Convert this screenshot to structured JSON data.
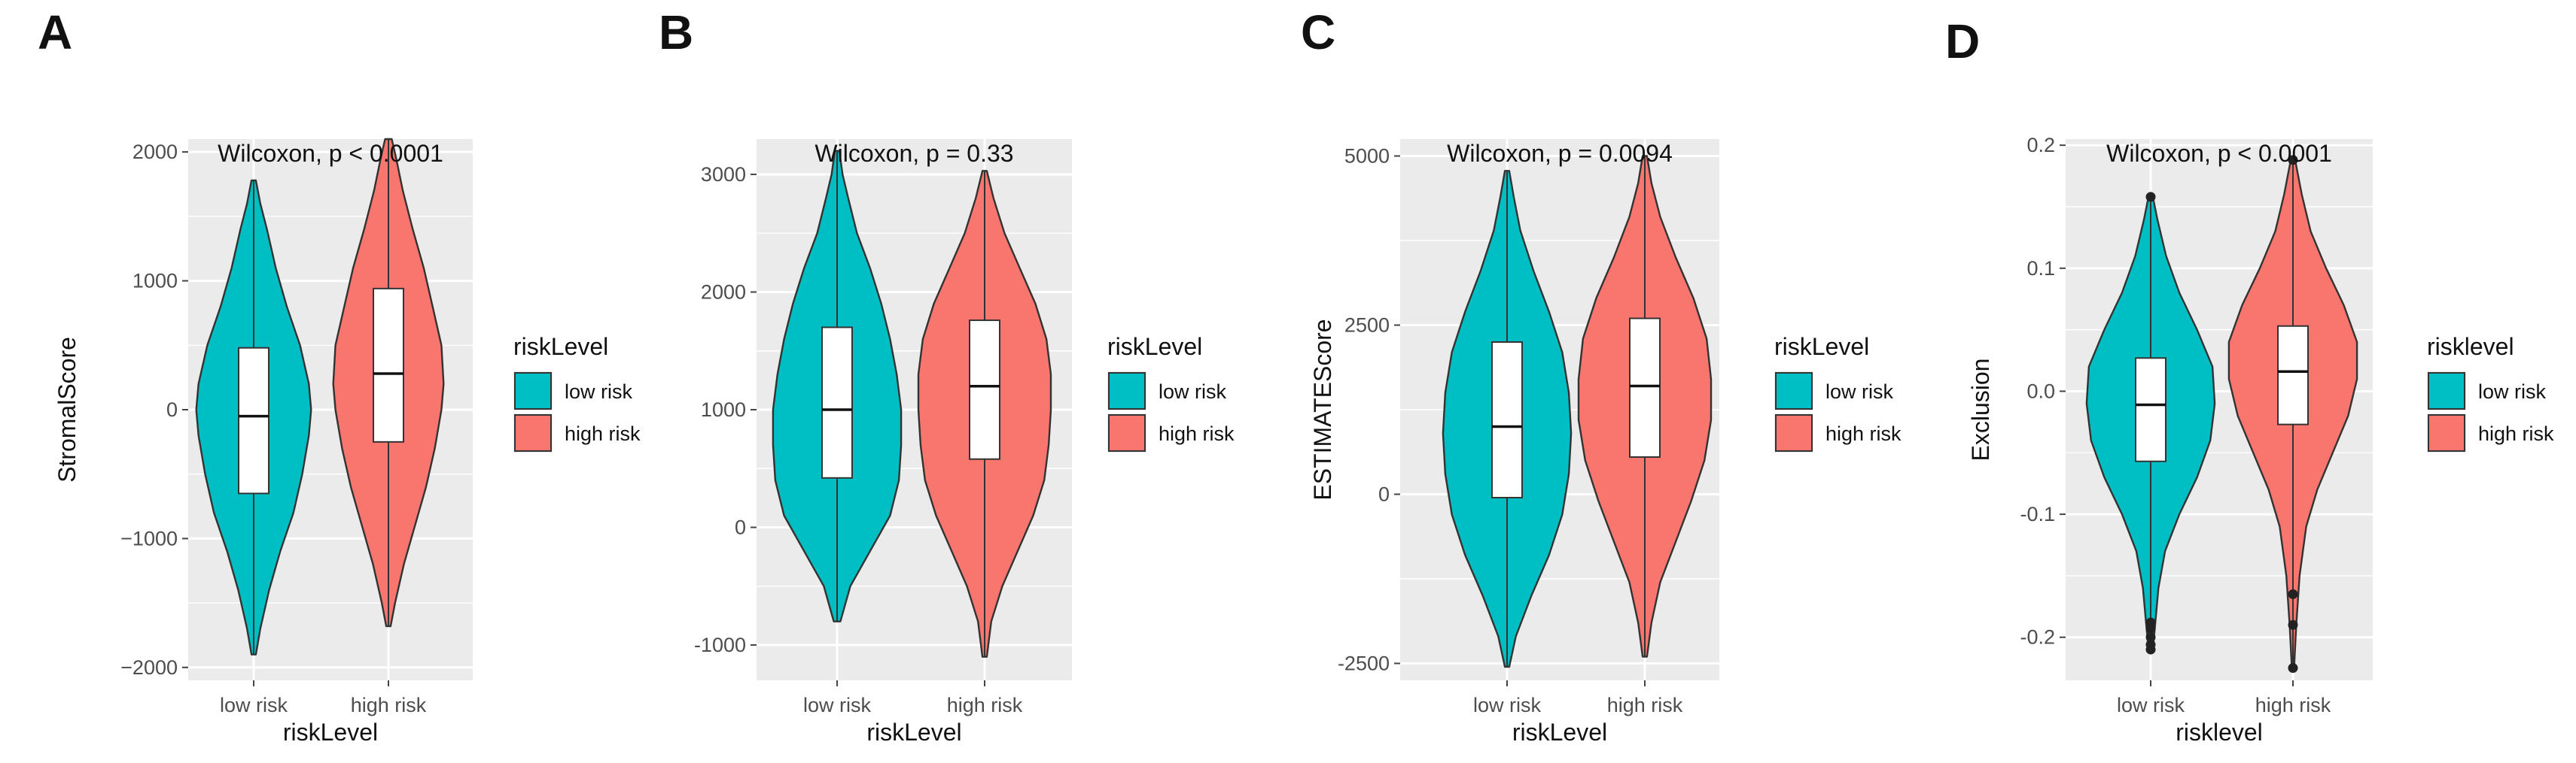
{
  "panels": [
    {
      "letter": "A"
    },
    {
      "letter": "B"
    },
    {
      "letter": "C"
    },
    {
      "letter": "D"
    }
  ],
  "colors": {
    "low_risk": "#00BFC4",
    "high_risk": "#F8766D",
    "panel_bg": "#EBEBEB",
    "grid": "#FFFFFF",
    "outline": "#333333"
  },
  "chart_data": [
    {
      "type": "violin",
      "title": "Wilcoxon, p < 0.0001",
      "xlabel": "riskLevel",
      "ylabel": "StromalScore",
      "categories": [
        "low risk",
        "high risk"
      ],
      "ylim": [
        -2100,
        2100
      ],
      "yticks": [
        -2000,
        -1000,
        0,
        1000,
        2000
      ],
      "ytick_labels": [
        "−2000",
        "−1000",
        "0",
        "1000",
        "2000"
      ],
      "grid": true,
      "legend": {
        "title": "riskLevel",
        "entries": [
          "low risk",
          "high risk"
        ],
        "position": "right"
      },
      "series": [
        {
          "name": "low risk",
          "min": -1900,
          "max": 1780,
          "q1": -650,
          "median": -50,
          "q3": 480,
          "density": [
            [
              -1900,
              0.02
            ],
            [
              -1700,
              0.06
            ],
            [
              -1400,
              0.14
            ],
            [
              -1100,
              0.24
            ],
            [
              -800,
              0.36
            ],
            [
              -500,
              0.44
            ],
            [
              -200,
              0.5
            ],
            [
              0,
              0.52
            ],
            [
              200,
              0.5
            ],
            [
              500,
              0.42
            ],
            [
              800,
              0.3
            ],
            [
              1100,
              0.2
            ],
            [
              1400,
              0.12
            ],
            [
              1600,
              0.06
            ],
            [
              1780,
              0.02
            ]
          ],
          "outliers": []
        },
        {
          "name": "high risk",
          "min": -1680,
          "max": 2100,
          "q1": -250,
          "median": 280,
          "q3": 940,
          "density": [
            [
              -1680,
              0.02
            ],
            [
              -1500,
              0.06
            ],
            [
              -1200,
              0.14
            ],
            [
              -900,
              0.24
            ],
            [
              -600,
              0.34
            ],
            [
              -300,
              0.42
            ],
            [
              0,
              0.48
            ],
            [
              200,
              0.5
            ],
            [
              500,
              0.48
            ],
            [
              800,
              0.4
            ],
            [
              1100,
              0.32
            ],
            [
              1400,
              0.22
            ],
            [
              1700,
              0.13
            ],
            [
              1950,
              0.07
            ],
            [
              2100,
              0.03
            ]
          ],
          "outliers": []
        }
      ]
    },
    {
      "type": "violin",
      "title": "Wilcoxon, p = 0.33",
      "xlabel": "riskLevel",
      "ylabel": "",
      "categories": [
        "low risk",
        "high risk"
      ],
      "ylim": [
        -1300,
        3300
      ],
      "yticks": [
        -1000,
        0,
        1000,
        2000,
        3000
      ],
      "ytick_labels": [
        "-1000",
        "0",
        "1000",
        "2000",
        "3000"
      ],
      "grid": true,
      "legend": {
        "title": "riskLevel",
        "entries": [
          "low risk",
          "high risk"
        ],
        "position": "right"
      },
      "series": [
        {
          "name": "low risk",
          "min": -800,
          "max": 3200,
          "q1": 420,
          "median": 1000,
          "q3": 1700,
          "density": [
            [
              -800,
              0.03
            ],
            [
              -500,
              0.12
            ],
            [
              -200,
              0.3
            ],
            [
              100,
              0.48
            ],
            [
              400,
              0.56
            ],
            [
              700,
              0.58
            ],
            [
              1000,
              0.58
            ],
            [
              1300,
              0.54
            ],
            [
              1600,
              0.48
            ],
            [
              1900,
              0.4
            ],
            [
              2200,
              0.3
            ],
            [
              2500,
              0.18
            ],
            [
              2800,
              0.1
            ],
            [
              3000,
              0.05
            ],
            [
              3200,
              0.02
            ]
          ],
          "outliers": []
        },
        {
          "name": "high risk",
          "min": -1100,
          "max": 3030,
          "q1": 580,
          "median": 1200,
          "q3": 1760,
          "density": [
            [
              -1100,
              0.02
            ],
            [
              -800,
              0.06
            ],
            [
              -500,
              0.16
            ],
            [
              -200,
              0.3
            ],
            [
              100,
              0.44
            ],
            [
              400,
              0.54
            ],
            [
              700,
              0.58
            ],
            [
              1000,
              0.6
            ],
            [
              1300,
              0.6
            ],
            [
              1600,
              0.56
            ],
            [
              1900,
              0.46
            ],
            [
              2200,
              0.32
            ],
            [
              2500,
              0.18
            ],
            [
              2800,
              0.08
            ],
            [
              3030,
              0.02
            ]
          ],
          "outliers": []
        }
      ]
    },
    {
      "type": "violin",
      "title": "Wilcoxon, p = 0.0094",
      "xlabel": "riskLevel",
      "ylabel": "ESTIMATEScore",
      "categories": [
        "low risk",
        "high risk"
      ],
      "ylim": [
        -2750,
        5250
      ],
      "yticks": [
        -2500,
        0,
        2500,
        5000
      ],
      "ytick_labels": [
        "-2500",
        "0",
        "2500",
        "5000"
      ],
      "grid": true,
      "legend": {
        "title": "riskLevel",
        "entries": [
          "low risk",
          "high risk"
        ],
        "position": "right"
      },
      "series": [
        {
          "name": "low risk",
          "min": -2550,
          "max": 4780,
          "q1": -50,
          "median": 1000,
          "q3": 2250,
          "density": [
            [
              -2550,
              0.02
            ],
            [
              -2100,
              0.08
            ],
            [
              -1500,
              0.22
            ],
            [
              -900,
              0.38
            ],
            [
              -300,
              0.5
            ],
            [
              300,
              0.56
            ],
            [
              900,
              0.58
            ],
            [
              1500,
              0.56
            ],
            [
              2100,
              0.5
            ],
            [
              2700,
              0.38
            ],
            [
              3300,
              0.24
            ],
            [
              3900,
              0.12
            ],
            [
              4400,
              0.06
            ],
            [
              4780,
              0.02
            ]
          ],
          "outliers": []
        },
        {
          "name": "high risk",
          "min": -2400,
          "max": 5000,
          "q1": 550,
          "median": 1600,
          "q3": 2600,
          "density": [
            [
              -2400,
              0.02
            ],
            [
              -1900,
              0.06
            ],
            [
              -1300,
              0.14
            ],
            [
              -700,
              0.28
            ],
            [
              -100,
              0.42
            ],
            [
              500,
              0.54
            ],
            [
              1100,
              0.6
            ],
            [
              1700,
              0.6
            ],
            [
              2300,
              0.56
            ],
            [
              2900,
              0.44
            ],
            [
              3500,
              0.28
            ],
            [
              4100,
              0.14
            ],
            [
              4600,
              0.06
            ],
            [
              5000,
              0.02
            ]
          ],
          "outliers": []
        }
      ]
    },
    {
      "type": "violin",
      "title": "Wilcoxon, p < 0.0001",
      "xlabel": "risklevel",
      "ylabel": "Exclusion",
      "categories": [
        "low risk",
        "high risk"
      ],
      "ylim": [
        -0.235,
        0.205
      ],
      "yticks": [
        -0.2,
        -0.1,
        0.0,
        0.1,
        0.2
      ],
      "ytick_labels": [
        "-0.2",
        "-0.1",
        "0.0",
        "0.1",
        "0.2"
      ],
      "grid": true,
      "legend": {
        "title": "risklevel",
        "entries": [
          "low risk",
          "high risk"
        ],
        "position": "right"
      },
      "series": [
        {
          "name": "low risk",
          "min": -0.21,
          "max": 0.158,
          "q1": -0.057,
          "median": -0.011,
          "q3": 0.027,
          "density": [
            [
              -0.21,
              0.02
            ],
            [
              -0.19,
              0.04
            ],
            [
              -0.16,
              0.07
            ],
            [
              -0.13,
              0.13
            ],
            [
              -0.1,
              0.26
            ],
            [
              -0.07,
              0.42
            ],
            [
              -0.04,
              0.54
            ],
            [
              -0.01,
              0.58
            ],
            [
              0.02,
              0.56
            ],
            [
              0.05,
              0.42
            ],
            [
              0.08,
              0.26
            ],
            [
              0.11,
              0.14
            ],
            [
              0.14,
              0.06
            ],
            [
              0.158,
              0.02
            ]
          ],
          "outliers": [
            0.158,
            -0.188,
            -0.193,
            -0.2,
            -0.206,
            -0.21
          ]
        },
        {
          "name": "high risk",
          "min": -0.225,
          "max": 0.188,
          "q1": -0.027,
          "median": 0.016,
          "q3": 0.053,
          "density": [
            [
              -0.225,
              0.01
            ],
            [
              -0.19,
              0.03
            ],
            [
              -0.15,
              0.06
            ],
            [
              -0.11,
              0.12
            ],
            [
              -0.08,
              0.22
            ],
            [
              -0.05,
              0.36
            ],
            [
              -0.02,
              0.5
            ],
            [
              0.01,
              0.58
            ],
            [
              0.04,
              0.58
            ],
            [
              0.07,
              0.46
            ],
            [
              0.1,
              0.3
            ],
            [
              0.13,
              0.16
            ],
            [
              0.16,
              0.08
            ],
            [
              0.188,
              0.02
            ]
          ],
          "outliers": [
            0.188,
            -0.165,
            -0.19,
            -0.225
          ]
        }
      ]
    }
  ]
}
